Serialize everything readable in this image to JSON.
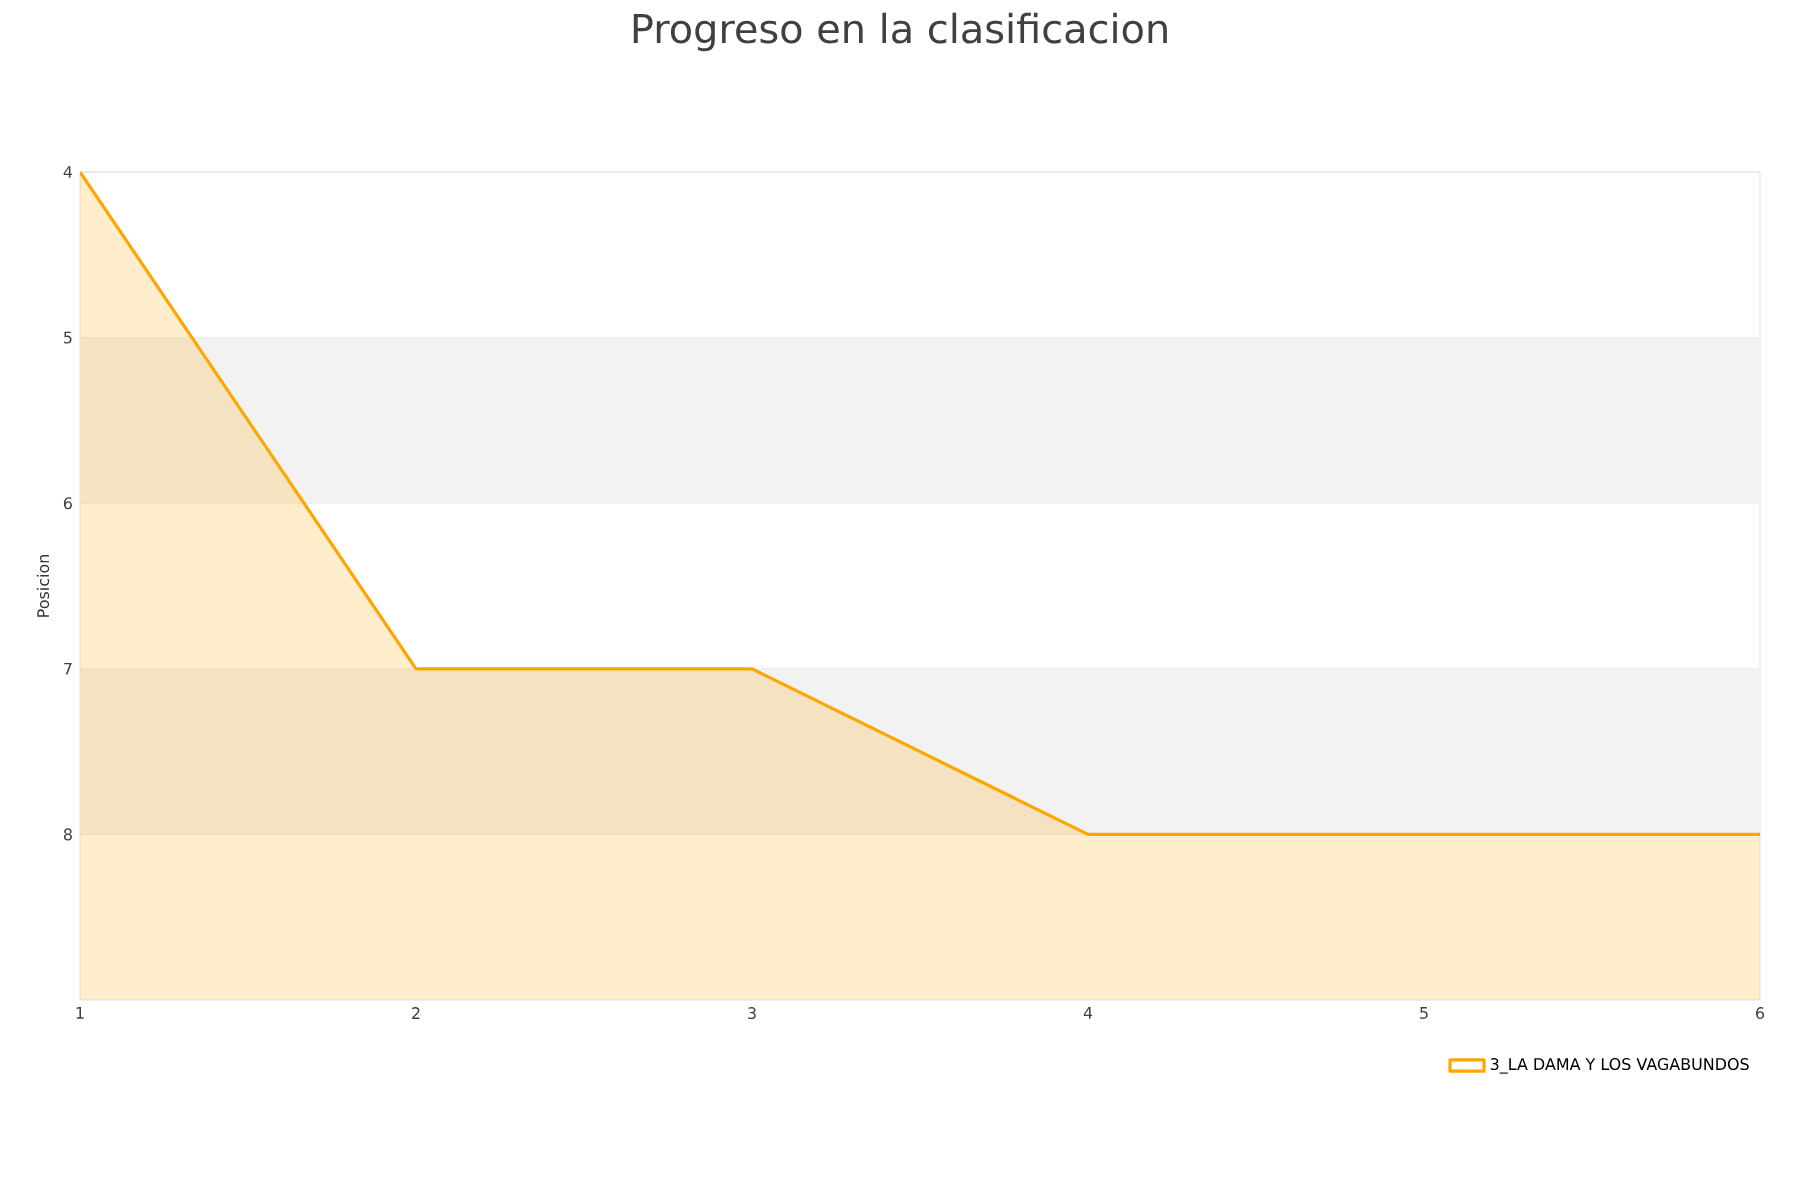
{
  "chart_data": {
    "type": "area",
    "title": "Progreso en la clasificacion",
    "ylabel": "Posicion",
    "x": [
      1,
      2,
      3,
      4,
      5,
      6
    ],
    "series": [
      {
        "name": "3_LA DAMA Y LOS VAGABUNDOS",
        "color": "#ffa500",
        "values": [
          4,
          7,
          7,
          8,
          8,
          8
        ]
      }
    ],
    "xlim": [
      1,
      6
    ],
    "xticks": [
      1,
      2,
      3,
      4,
      5,
      6
    ],
    "ylim": [
      9,
      4
    ],
    "yticks": [
      4,
      5,
      6,
      7,
      8
    ],
    "bands": [
      {
        "axis": "y",
        "from": 5,
        "to": 6,
        "color": "#f2f2f2"
      },
      {
        "axis": "y",
        "from": 7,
        "to": 8,
        "color": "#f2f2f2"
      }
    ],
    "grid": "y",
    "legend": "bottom right",
    "marker": "none"
  }
}
